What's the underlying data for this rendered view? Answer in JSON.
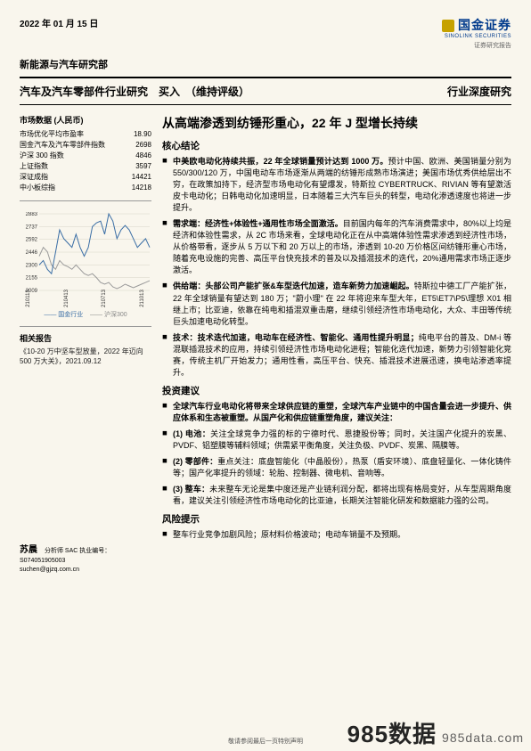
{
  "date": "2022 年 01 月 15 日",
  "logo": {
    "cn": "国金证券",
    "en": "SINOLINK SECURITIES",
    "tag": "证券研究报告"
  },
  "dept": "新能源与汽车研究部",
  "sector_title": "汽车及汽车零部件行业研究　买入　（维持评级）",
  "doc_type": "行业深度研究",
  "market_header": "市场数据 (人民币)",
  "market_rows": [
    {
      "k": "市场优化平均市盈率",
      "v": "18.90"
    },
    {
      "k": "国金汽车及汽车零部件指数",
      "v": "2698"
    },
    {
      "k": "沪深 300 指数",
      "v": "4846"
    },
    {
      "k": "上证指数",
      "v": "3597"
    },
    {
      "k": "深证成指",
      "v": "14421"
    },
    {
      "k": "中小板综指",
      "v": "14218"
    }
  ],
  "chart": {
    "ylim": [
      2009,
      2883
    ],
    "yticks": [
      2009,
      2155,
      2300,
      2446,
      2592,
      2737,
      2883
    ],
    "xlabels": [
      "210113",
      "210413",
      "210713",
      "211013"
    ],
    "series_a_name": "国金行业",
    "series_b_name": "沪深300",
    "series_a_color": "#3a6ea5",
    "series_b_color": "#9a9a9a",
    "bg": "#f9f6ed",
    "grid": "#d8d4c6",
    "series_a": [
      2300,
      2350,
      2250,
      2200,
      2446,
      2700,
      2600,
      2550,
      2500,
      2650,
      2500,
      2400,
      2500,
      2737,
      2780,
      2800,
      2650,
      2883,
      2800,
      2600,
      2700,
      2750,
      2700,
      2600,
      2500,
      2550,
      2600,
      2500
    ],
    "series_b": [
      2400,
      2500,
      2450,
      2300,
      2250,
      2350,
      2300,
      2280,
      2250,
      2300,
      2250,
      2200,
      2180,
      2200,
      2155,
      2100,
      2080,
      2100,
      2050,
      2030,
      2050,
      2080,
      2060,
      2040,
      2060,
      2080,
      2100,
      2120
    ]
  },
  "legend_a": "国金行业",
  "legend_b": "沪深300",
  "related_header": "相关报告",
  "related_item": "《10-20 万中坚车型放量，2022 年迈向 500 万大关》，2021.09.12",
  "analyst": {
    "name": "苏晨",
    "line1": "分析师 SAC 执业编号：S074051905003",
    "line2": "suchen@gjzq.com.cn"
  },
  "headline": "从高端渗透到纺锤形重心，22 年 J 型增长持续",
  "sec1": "核心结论",
  "b1_lead": "中美欧电动化持续共振，22 年全球销量预计达到 1000 万。",
  "b1_body": "预计中国、欧洲、美国销量分别为 550/300/120 万，中国电动车市场逐渐从两端的纺锤形成熟市场演进；美国市场优秀供给层出不穷，在政策加持下，经济型市场电动化有望爆发，特斯拉 CYBERTRUCK、RIVIAN 等有望激活皮卡电动化；日韩电动化加速明显，日本随着三大汽车巨头的转型，电动化渗透速度也将进一步提升。",
  "b2_lead": "需求端：经济性+体验性+通用性市场全面激活。",
  "b2_body": "目前国内每年的汽车消费需求中，80%以上均是经济和体验性需求，从 2C 市场来看，全球电动化正在从中高端体验性需求渗透到经济性市场，从价格带看，逐步从 5 万以下和 20 万以上的市场，渗透到 10-20 万价格区间纺锤形重心市场，随着充电设施的完善、高压平台快充技术的普及以及插混技术的迭代，20%通用需求市场正逐步激活。",
  "b3_lead": "供给端：头部公司产能扩张&车型迭代加速，造车新势力加速崛起。",
  "b3_body": "特斯拉中德工厂产能扩张，22 年全球销量有望达到 180 万；\"蔚小理\" 在 22 年将迎来车型大年，ET5\\ET7\\P5\\理想 X01 相继上市；比亚迪，依靠在纯电和插混双重击磨，继续引领经济性市场电动化，大众、丰田等传统巨头加速电动化转型。",
  "b4_lead": "技术：技术迭代加速，电动车在经济性、智能化、通用性提升明显；",
  "b4_body": "纯电平台的普及、DM-i 等混联插混技术的应用，持续引领经济性市场电动化进程；智能化迭代加速，新势力引领智能化竞赛，传统主机厂开始发力；通用性看，高压平台、快充、插混技术进展迅速，换电站渗透率提升。",
  "sec2": "投资建议",
  "i1_lead": "全球汽车行业电动化将带来全球供应链的重塑，全球汽车产业链中的中国含量会进一步提升、供应体系和生态被重塑。从国产化和供应链重塑角度，建议关注：",
  "i2_lead": "(1) 电池：",
  "i2_body": "关注全球竞争力强的标的宁德时代、恩捷股份等；同时，关注国产化提升的炭黑、PVDF、铝塑膜等辅料领域；供需紧平衡角度，关注负极、PVDF、炭黑、隔膜等。",
  "i3_lead": "(2) 零部件：",
  "i3_body": "重点关注：底盘智能化（中晶股份），热泵（盾安环境）、底盘轻量化、一体化铸件等；国产化率提升的领域：轮胎、控制器、微电机、音响等。",
  "i4_lead": "(3) 整车：",
  "i4_body": "未来整车无论是集中度还是产业链利润分配，都将出现有格局变好，从车型周期角度看，建议关注引领经济性市场电动化的比亚迪，长期关注智能化研发和数据能力强的公司。",
  "sec3": "风险提示",
  "r1": "整车行业竞争加剧风险；原材料价格波动；电动车销量不及预期。",
  "footer": "敬请参阅最后一页特别声明",
  "watermark_a": "985数据",
  "watermark_b": "985data.com"
}
